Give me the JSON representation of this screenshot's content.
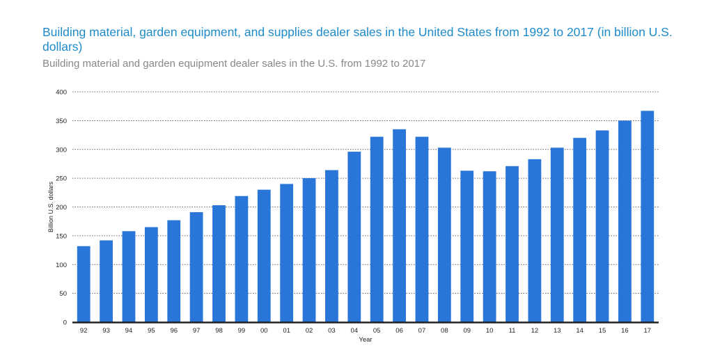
{
  "title": "Building material, garden equipment, and supplies dealer sales in the United States from 1992 to 2017 (in billion U.S. dollars)",
  "subtitle": "Building material and garden equipment dealer sales in the U.S. from 1992 to 2017",
  "colors": {
    "bar": "#2a75d8",
    "title": "#1f8bc8",
    "subtitle": "#888888",
    "grid": "#333333",
    "axis": "#222222"
  },
  "chart_data": {
    "type": "bar",
    "xlabel": "Year",
    "ylabel": "Billion U.S. dollars",
    "ylim": [
      0,
      400
    ],
    "yticks": [
      0,
      50,
      100,
      150,
      200,
      250,
      300,
      350,
      400
    ],
    "grid": true,
    "gridStyle": "dotted",
    "categories": [
      "92",
      "93",
      "94",
      "95",
      "96",
      "97",
      "98",
      "99",
      "00",
      "01",
      "02",
      "03",
      "04",
      "05",
      "06",
      "07",
      "08",
      "09",
      "10",
      "11",
      "12",
      "13",
      "14",
      "15",
      "16",
      "17"
    ],
    "values": [
      132,
      142,
      158,
      165,
      177,
      191,
      203,
      219,
      230,
      240,
      250,
      264,
      296,
      322,
      335,
      322,
      303,
      263,
      262,
      271,
      283,
      303,
      320,
      333,
      350,
      367
    ]
  }
}
